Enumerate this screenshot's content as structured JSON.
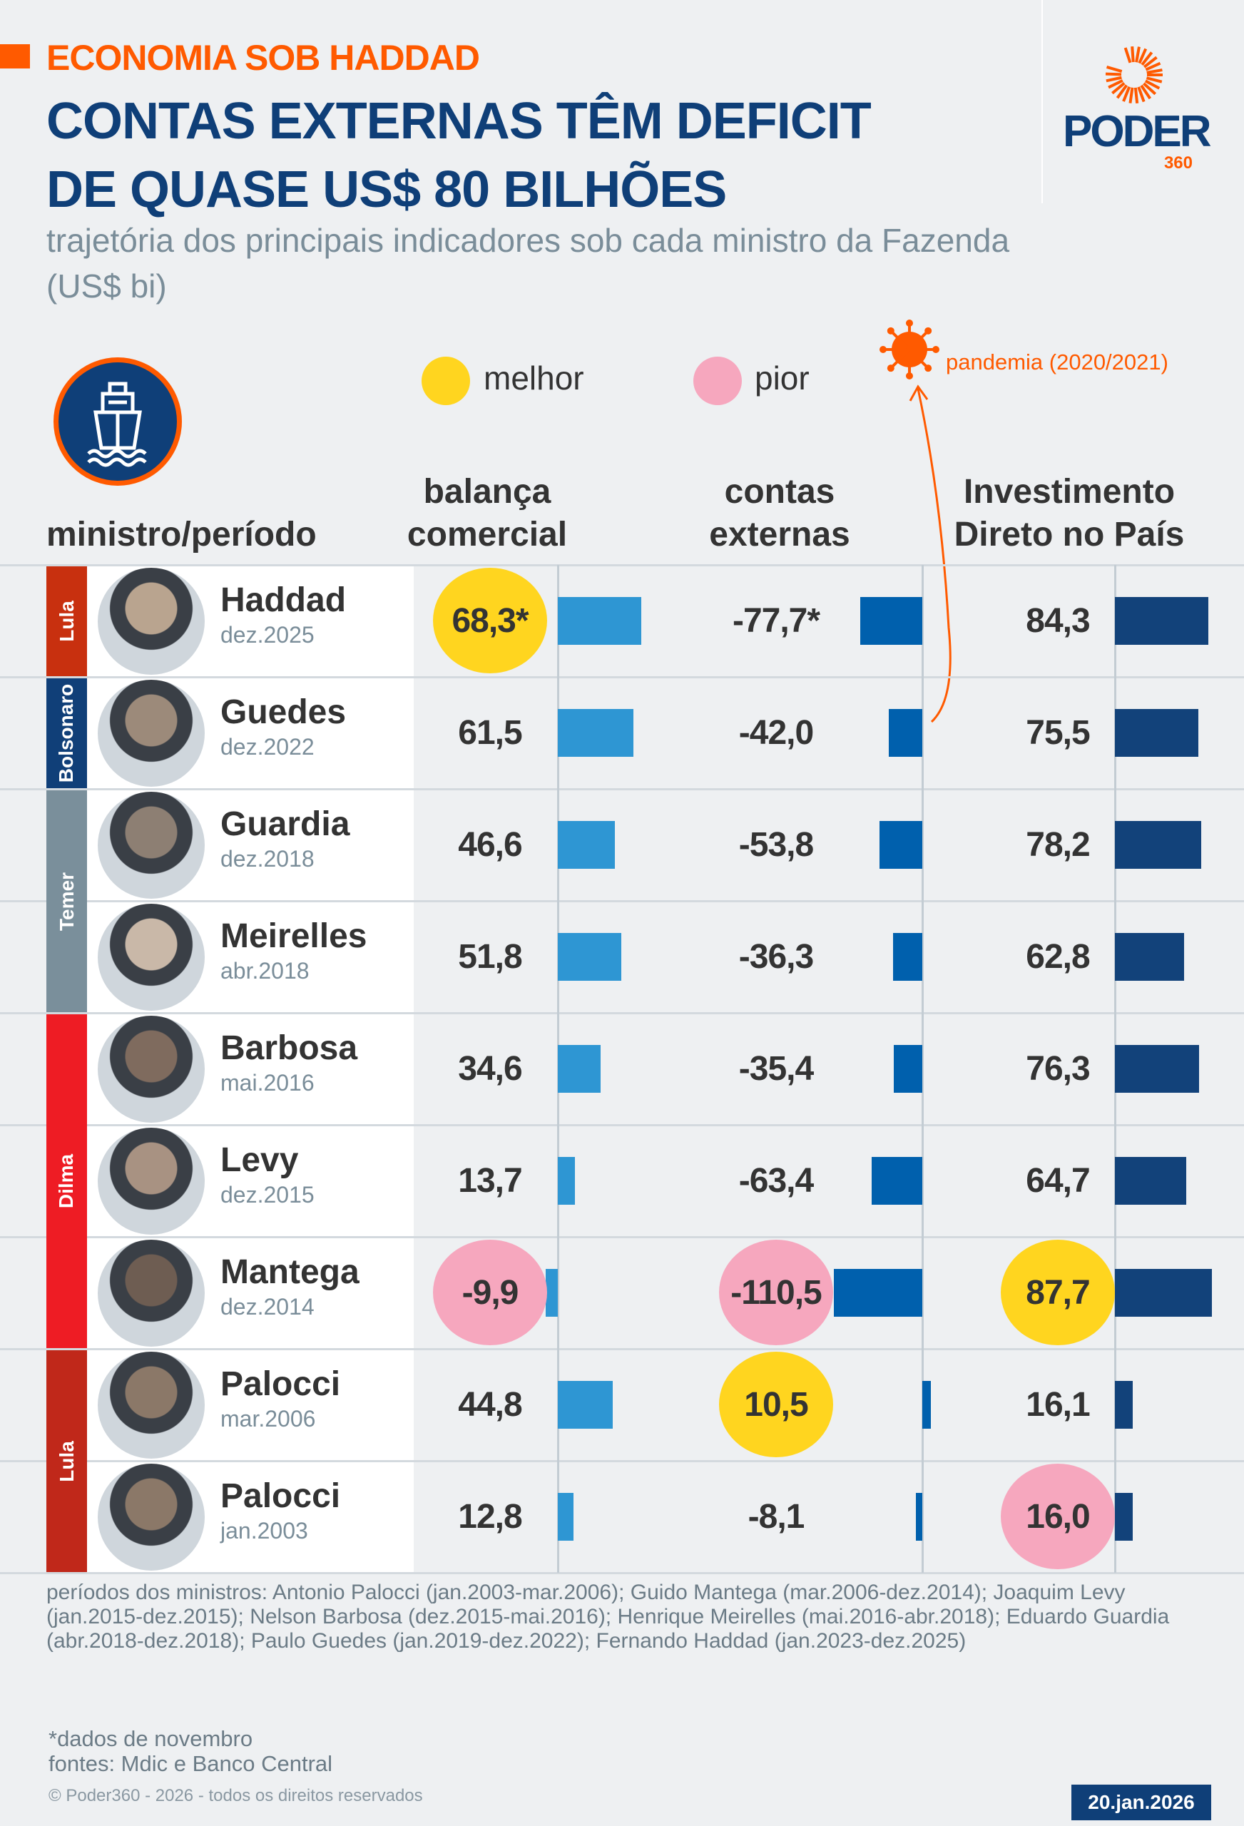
{
  "header": {
    "kicker": "ECONOMIA SOB HADDAD",
    "title_line1": "CONTAS EXTERNAS TÊM DEFICIT",
    "title_line2": "DE QUASE US$ 80 BILHÕES",
    "subtitle": "trajetória dos principais indicadores sob cada ministro da Fazenda (US$ bi)"
  },
  "logo": {
    "word": "PODER",
    "number": "360"
  },
  "legend": {
    "better": "melhor",
    "worse": "pior",
    "pandemic": "pandemia (2020/2021)",
    "icon": "ship-icon"
  },
  "colors": {
    "better": "#ffd51f",
    "worse": "#f6a7be",
    "balanca": "#2e96d3",
    "contas": "#0060ad",
    "idp": "#12427a",
    "accent": "#ff5a00",
    "navy": "#0f3f78"
  },
  "chart_data": {
    "type": "table",
    "columns": [
      "ministro/período",
      "balança comercial",
      "contas externas",
      "Investimento Direto no País"
    ],
    "parties": [
      {
        "label": "Lula",
        "color": "#c8300f",
        "rows": [
          0
        ]
      },
      {
        "label": "Bolsonaro",
        "color": "#103f78",
        "rows": [
          1
        ]
      },
      {
        "label": "Temer",
        "color": "#7a8f9b",
        "rows": [
          2,
          3
        ]
      },
      {
        "label": "Dilma",
        "color": "#ee1c24",
        "rows": [
          4,
          5,
          6
        ]
      },
      {
        "label": "Lula",
        "color": "#c0281a",
        "rows": [
          7,
          8
        ]
      }
    ],
    "rows": [
      {
        "name": "Haddad",
        "date": "dez.2025",
        "balanca": 68.3,
        "balanca_label": "68,3*",
        "contas": -77.7,
        "contas_label": "-77,7*",
        "idp": 84.3,
        "idp_label": "84,3",
        "mark": {
          "balanca": "better"
        }
      },
      {
        "name": "Guedes",
        "date": "dez.2022",
        "balanca": 61.5,
        "balanca_label": "61,5",
        "contas": -42.0,
        "contas_label": "-42,0",
        "idp": 75.5,
        "idp_label": "75,5",
        "mark": {}
      },
      {
        "name": "Guardia",
        "date": "dez.2018",
        "balanca": 46.6,
        "balanca_label": "46,6",
        "contas": -53.8,
        "contas_label": "-53,8",
        "idp": 78.2,
        "idp_label": "78,2",
        "mark": {}
      },
      {
        "name": "Meirelles",
        "date": "abr.2018",
        "balanca": 51.8,
        "balanca_label": "51,8",
        "contas": -36.3,
        "contas_label": "-36,3",
        "idp": 62.8,
        "idp_label": "62,8",
        "mark": {}
      },
      {
        "name": "Barbosa",
        "date": "mai.2016",
        "balanca": 34.6,
        "balanca_label": "34,6",
        "contas": -35.4,
        "contas_label": "-35,4",
        "idp": 76.3,
        "idp_label": "76,3",
        "mark": {}
      },
      {
        "name": "Levy",
        "date": "dez.2015",
        "balanca": 13.7,
        "balanca_label": "13,7",
        "contas": -63.4,
        "contas_label": "-63,4",
        "idp": 64.7,
        "idp_label": "64,7",
        "mark": {}
      },
      {
        "name": "Mantega",
        "date": "dez.2014",
        "balanca": -9.9,
        "balanca_label": "-9,9",
        "contas": -110.5,
        "contas_label": "-110,5",
        "idp": 87.7,
        "idp_label": "87,7",
        "mark": {
          "balanca": "worse",
          "contas": "worse",
          "idp": "better"
        }
      },
      {
        "name": "Palocci",
        "date": "mar.2006",
        "balanca": 44.8,
        "balanca_label": "44,8",
        "contas": 10.5,
        "contas_label": "10,5",
        "idp": 16.1,
        "idp_label": "16,1",
        "mark": {
          "contas": "better"
        }
      },
      {
        "name": "Palocci",
        "date": "jan.2003",
        "balanca": 12.8,
        "balanca_label": "12,8",
        "contas": -8.1,
        "contas_label": "-8,1",
        "idp": 16.0,
        "idp_label": "16,0",
        "mark": {
          "idp": "worse"
        }
      }
    ]
  },
  "footer": {
    "notes": "períodos dos ministros: Antonio Palocci (jan.2003-mar.2006); Guido Mantega (mar.2006-dez.2014); Joaquim Levy (jan.2015-dez.2015); Nelson Barbosa (dez.2015-mai.2016); Henrique Meirelles (mai.2016-abr.2018); Eduardo Guardia (abr.2018-dez.2018); Paulo Guedes (jan.2019-dez.2022); Fernando Haddad (jan.2023-dez.2025)",
    "footnote": "*dados de novembro",
    "sources": "fontes: Mdic e Banco Central",
    "copyright": "© Poder360 - 2026 - todos os direitos reservados",
    "date": "20.jan.2026"
  }
}
